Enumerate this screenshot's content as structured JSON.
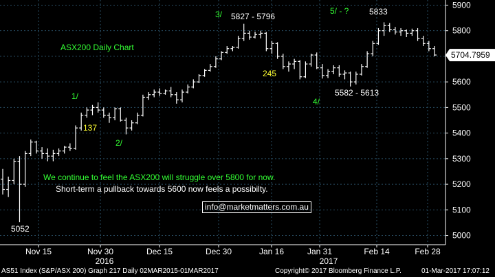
{
  "chart_data": {
    "type": "ohlc",
    "title": "ASX200 Daily Chart",
    "ylim": [
      4980,
      5920
    ],
    "y_ticks": [
      5000,
      5100,
      5200,
      5300,
      5400,
      5500,
      5600,
      5700,
      5800,
      5900
    ],
    "x_ticks": [
      "Nov 15",
      "Nov 30",
      "Dec 15",
      "Dec 30",
      "Jan 16",
      "Jan 31",
      "Feb 14",
      "Feb 28"
    ],
    "x_years": [
      "2016",
      "2017"
    ],
    "last_price": "5704.7959",
    "ohlc": [
      [
        5220,
        5260,
        5160,
        5180
      ],
      [
        5180,
        5230,
        5150,
        5215
      ],
      [
        5215,
        5300,
        5200,
        5290
      ],
      [
        5290,
        5310,
        5052,
        5200
      ],
      [
        5200,
        5330,
        5190,
        5320
      ],
      [
        5320,
        5375,
        5310,
        5365
      ],
      [
        5365,
        5370,
        5320,
        5330
      ],
      [
        5330,
        5345,
        5300,
        5320
      ],
      [
        5320,
        5340,
        5290,
        5310
      ],
      [
        5310,
        5335,
        5290,
        5320
      ],
      [
        5320,
        5340,
        5310,
        5330
      ],
      [
        5330,
        5350,
        5320,
        5345
      ],
      [
        5345,
        5360,
        5330,
        5340
      ],
      [
        5340,
        5430,
        5335,
        5420
      ],
      [
        5420,
        5480,
        5410,
        5470
      ],
      [
        5470,
        5500,
        5460,
        5490
      ],
      [
        5490,
        5510,
        5470,
        5500
      ],
      [
        5500,
        5520,
        5480,
        5490
      ],
      [
        5490,
        5500,
        5460,
        5470
      ],
      [
        5470,
        5480,
        5440,
        5460
      ],
      [
        5460,
        5500,
        5450,
        5495
      ],
      [
        5495,
        5500,
        5445,
        5450
      ],
      [
        5450,
        5460,
        5395,
        5420
      ],
      [
        5420,
        5450,
        5410,
        5440
      ],
      [
        5440,
        5480,
        5435,
        5470
      ],
      [
        5470,
        5550,
        5465,
        5540
      ],
      [
        5540,
        5560,
        5530,
        5550
      ],
      [
        5550,
        5570,
        5540,
        5560
      ],
      [
        5560,
        5575,
        5545,
        5555
      ],
      [
        5555,
        5570,
        5550,
        5565
      ],
      [
        5565,
        5580,
        5540,
        5550
      ],
      [
        5550,
        5560,
        5515,
        5530
      ],
      [
        5530,
        5570,
        5520,
        5560
      ],
      [
        5560,
        5590,
        5555,
        5580
      ],
      [
        5580,
        5610,
        5575,
        5600
      ],
      [
        5600,
        5630,
        5595,
        5625
      ],
      [
        5625,
        5650,
        5620,
        5645
      ],
      [
        5645,
        5670,
        5640,
        5660
      ],
      [
        5660,
        5700,
        5655,
        5690
      ],
      [
        5690,
        5720,
        5685,
        5715
      ],
      [
        5715,
        5740,
        5710,
        5730
      ],
      [
        5730,
        5740,
        5720,
        5735
      ],
      [
        5735,
        5780,
        5730,
        5770
      ],
      [
        5770,
        5827,
        5760,
        5790
      ],
      [
        5790,
        5800,
        5765,
        5775
      ],
      [
        5775,
        5796,
        5770,
        5785
      ],
      [
        5785,
        5800,
        5770,
        5790
      ],
      [
        5790,
        5795,
        5720,
        5730
      ],
      [
        5730,
        5760,
        5710,
        5750
      ],
      [
        5750,
        5755,
        5690,
        5700
      ],
      [
        5700,
        5710,
        5650,
        5660
      ],
      [
        5660,
        5680,
        5640,
        5670
      ],
      [
        5670,
        5690,
        5650,
        5680
      ],
      [
        5680,
        5685,
        5610,
        5620
      ],
      [
        5620,
        5680,
        5615,
        5670
      ],
      [
        5670,
        5710,
        5660,
        5705
      ],
      [
        5705,
        5715,
        5650,
        5655
      ],
      [
        5655,
        5670,
        5613,
        5625
      ],
      [
        5625,
        5650,
        5615,
        5640
      ],
      [
        5640,
        5665,
        5630,
        5655
      ],
      [
        5655,
        5665,
        5620,
        5630
      ],
      [
        5630,
        5645,
        5610,
        5635
      ],
      [
        5635,
        5640,
        5582,
        5600
      ],
      [
        5600,
        5640,
        5590,
        5630
      ],
      [
        5630,
        5670,
        5625,
        5660
      ],
      [
        5660,
        5720,
        5655,
        5710
      ],
      [
        5710,
        5760,
        5700,
        5750
      ],
      [
        5750,
        5810,
        5745,
        5800
      ],
      [
        5800,
        5833,
        5780,
        5820
      ],
      [
        5820,
        5830,
        5795,
        5805
      ],
      [
        5805,
        5815,
        5785,
        5795
      ],
      [
        5795,
        5810,
        5780,
        5800
      ],
      [
        5800,
        5805,
        5775,
        5790
      ],
      [
        5790,
        5808,
        5780,
        5800
      ],
      [
        5800,
        5810,
        5760,
        5770
      ],
      [
        5770,
        5780,
        5740,
        5750
      ],
      [
        5750,
        5760,
        5720,
        5730
      ],
      [
        5730,
        5740,
        5700,
        5705
      ]
    ]
  },
  "annotations": {
    "wave1": "1/",
    "wave1_pts": "137",
    "wave2": "2/",
    "wave3": "3/",
    "wave3_range": "5827 - 5796",
    "wave3_pts": "245",
    "wave4": "4/",
    "wave4_range": "5582 - 5613",
    "wave5": "5/ - ?",
    "wave5_high": "5833",
    "low_label": "5052"
  },
  "comment_line1": "We continue to feel the ASX200 will struggle over 5800 for now.",
  "comment_line2": "Short-term a pullback towards 5600 now feels a possibilty.",
  "email": "info@marketmatters.com.au",
  "footer": {
    "left": "AS51 Index (S&P/ASX 200) Graph 217  Daily 02MAR2015-01MAR2017",
    "center": "Copyright© 2017 Bloomberg Finance L.P.",
    "right": "01-Mar-2017 17:07:12"
  },
  "colors": {
    "background": "#000000",
    "bars": "#ffffff",
    "wave_labels": "#33ff33",
    "points_labels": "#ffff33",
    "grid": "#2a4f66"
  }
}
